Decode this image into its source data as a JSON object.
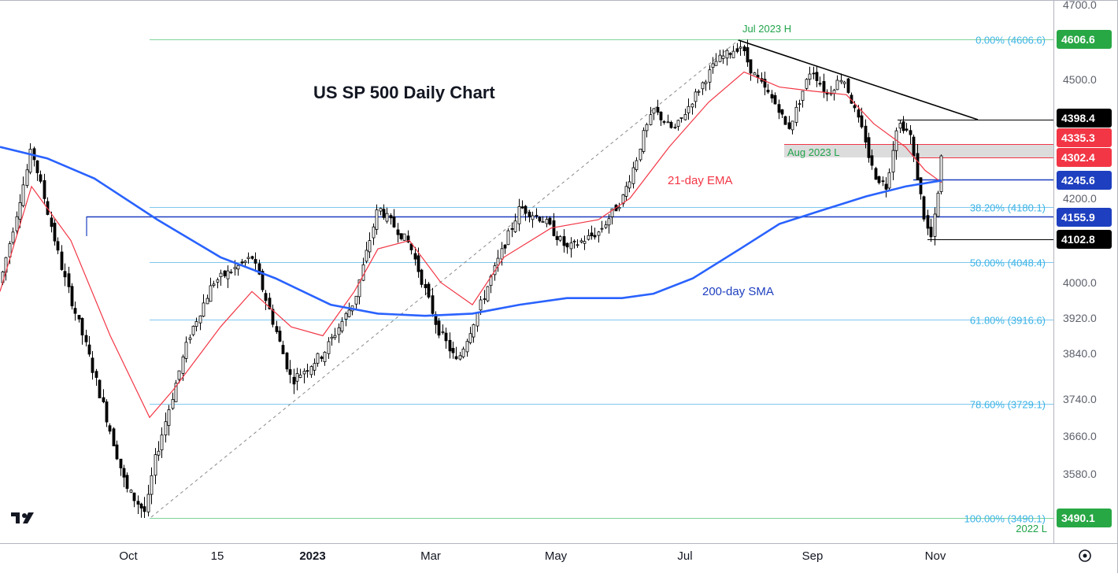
{
  "chart_data": {
    "type": "candlestick",
    "title": "US SP 500 Daily Chart",
    "y_axis": {
      "ticks": [
        "4700.0",
        "4500.0",
        "4200.0",
        "4000.0",
        "3920.0",
        "3840.0",
        "3740.0",
        "3660.0",
        "3580.0"
      ],
      "tick_values": [
        4700,
        4500,
        4200,
        4000,
        3920,
        3840,
        3740,
        3660,
        3580
      ]
    },
    "x_axis": {
      "ticks": [
        "Oct",
        "15",
        "2023",
        "Mar",
        "May",
        "Jul",
        "Sep",
        "Nov"
      ]
    },
    "price_badges": [
      {
        "label": "4606.6",
        "value": 4606.6,
        "color": "#28a745"
      },
      {
        "label": "4398.4",
        "value": 4398.4,
        "color": "#000000"
      },
      {
        "label": "4335.3",
        "value": 4335.3,
        "color": "#f23645"
      },
      {
        "label": "4302.4",
        "value": 4302.4,
        "color": "#f23645"
      },
      {
        "label": "4245.6",
        "value": 4245.6,
        "color": "#1e3fbf"
      },
      {
        "label": "4155.9",
        "value": 4155.9,
        "color": "#1e3fbf"
      },
      {
        "label": "4102.8",
        "value": 4102.8,
        "color": "#000000"
      },
      {
        "label": "3490.1",
        "value": 3490.1,
        "color": "#28a745"
      }
    ],
    "fibonacci": [
      {
        "label": "0.00% (4606.6)",
        "value": 4606.6
      },
      {
        "label": "38.20% (4180.1)",
        "value": 4180.1
      },
      {
        "label": "50.00% (4048.4)",
        "value": 4048.4
      },
      {
        "label": "61.80% (3916.6)",
        "value": 3916.6
      },
      {
        "label": "78.60% (3729.1)",
        "value": 3729.1
      },
      {
        "label": "100.00% (3490.1)",
        "value": 3490.1
      }
    ],
    "annotations": {
      "high": "Jul 2023 H",
      "aug_low": "Aug 2023 L",
      "low_2022": "2022 L",
      "ema": "21-day EMA",
      "sma": "200-day SMA"
    },
    "series": [
      {
        "name": "21-day EMA",
        "color": "#f23645"
      },
      {
        "name": "200-day SMA",
        "color": "#2962ff"
      }
    ],
    "price_path": [
      [
        0,
        4000
      ],
      [
        40,
        4320
      ],
      [
        80,
        4020
      ],
      [
        110,
        3850
      ],
      [
        160,
        3550
      ],
      [
        185,
        3500
      ],
      [
        195,
        3600
      ],
      [
        240,
        3880
      ],
      [
        270,
        4000
      ],
      [
        320,
        4060
      ],
      [
        370,
        3780
      ],
      [
        410,
        3840
      ],
      [
        450,
        3960
      ],
      [
        480,
        4180
      ],
      [
        520,
        4090
      ],
      [
        555,
        3900
      ],
      [
        580,
        3820
      ],
      [
        610,
        3950
      ],
      [
        660,
        4180
      ],
      [
        690,
        4150
      ],
      [
        720,
        4080
      ],
      [
        760,
        4120
      ],
      [
        790,
        4200
      ],
      [
        830,
        4420
      ],
      [
        855,
        4360
      ],
      [
        880,
        4450
      ],
      [
        910,
        4550
      ],
      [
        940,
        4590
      ],
      [
        955,
        4520
      ],
      [
        990,
        4420
      ],
      [
        1000,
        4360
      ],
      [
        1030,
        4530
      ],
      [
        1050,
        4460
      ],
      [
        1070,
        4510
      ],
      [
        1090,
        4390
      ],
      [
        1110,
        4260
      ],
      [
        1125,
        4230
      ],
      [
        1140,
        4385
      ],
      [
        1155,
        4350
      ],
      [
        1165,
        4250
      ],
      [
        1175,
        4140
      ],
      [
        1182,
        4105
      ],
      [
        1190,
        4190
      ],
      [
        1196,
        4310
      ]
    ],
    "ema_path": [
      [
        0,
        3980
      ],
      [
        40,
        4230
      ],
      [
        90,
        4100
      ],
      [
        140,
        3880
      ],
      [
        190,
        3700
      ],
      [
        220,
        3760
      ],
      [
        280,
        3900
      ],
      [
        320,
        3980
      ],
      [
        370,
        3900
      ],
      [
        410,
        3880
      ],
      [
        450,
        3980
      ],
      [
        480,
        4080
      ],
      [
        520,
        4100
      ],
      [
        560,
        4000
      ],
      [
        600,
        3950
      ],
      [
        640,
        4060
      ],
      [
        700,
        4130
      ],
      [
        760,
        4150
      ],
      [
        800,
        4200
      ],
      [
        850,
        4320
      ],
      [
        900,
        4440
      ],
      [
        945,
        4520
      ],
      [
        990,
        4480
      ],
      [
        1030,
        4470
      ],
      [
        1075,
        4460
      ],
      [
        1110,
        4380
      ],
      [
        1150,
        4320
      ],
      [
        1175,
        4270
      ],
      [
        1196,
        4240
      ]
    ],
    "sma_path": [
      [
        0,
        4320
      ],
      [
        60,
        4300
      ],
      [
        120,
        4250
      ],
      [
        200,
        4150
      ],
      [
        280,
        4060
      ],
      [
        350,
        4010
      ],
      [
        420,
        3950
      ],
      [
        480,
        3930
      ],
      [
        540,
        3925
      ],
      [
        600,
        3930
      ],
      [
        660,
        3950
      ],
      [
        720,
        3965
      ],
      [
        790,
        3965
      ],
      [
        830,
        3975
      ],
      [
        880,
        4010
      ],
      [
        940,
        4080
      ],
      [
        990,
        4140
      ],
      [
        1040,
        4170
      ],
      [
        1100,
        4205
      ],
      [
        1150,
        4230
      ],
      [
        1196,
        4245
      ]
    ]
  }
}
